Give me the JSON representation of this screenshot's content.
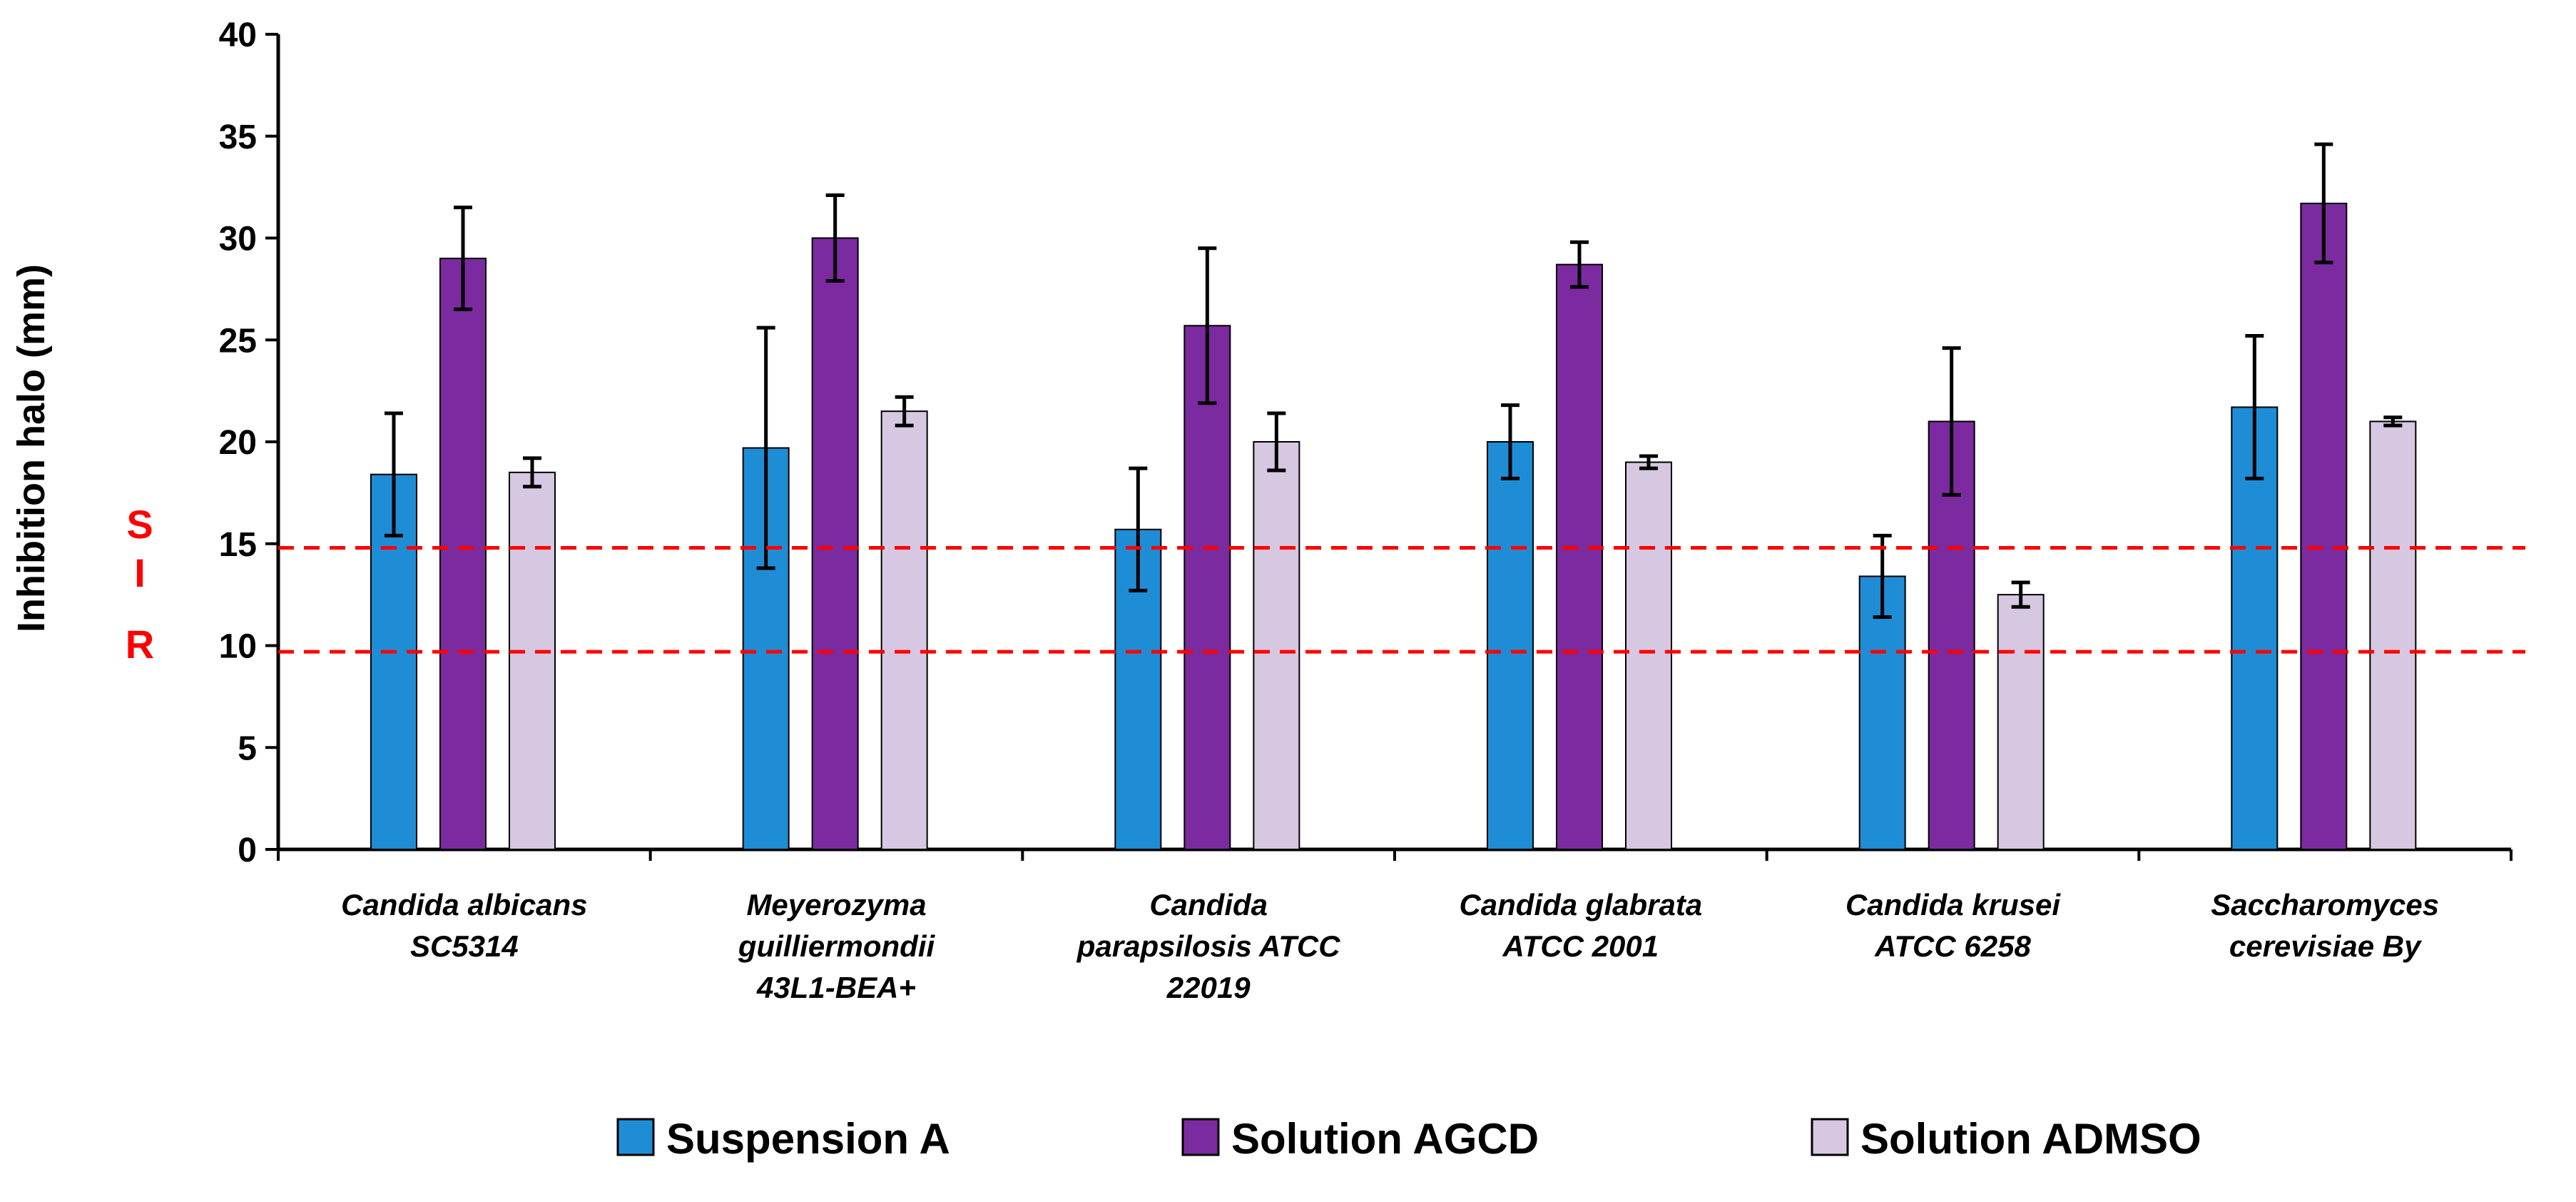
{
  "chart_data": {
    "type": "bar",
    "title": "",
    "xlabel": "",
    "ylabel": "Inhibition halo (mm)",
    "ylim": [
      0,
      40
    ],
    "ytick_step": 5,
    "grid": false,
    "legend_position": "bottom",
    "categories": [
      [
        "Candida albicans",
        "SC5314"
      ],
      [
        "Meyerozyma",
        "guilliermondii",
        "43L1-BEA+"
      ],
      [
        "Candida",
        "parapsilosis ATCC",
        "22019"
      ],
      [
        "Candida glabrata",
        "ATCC 2001"
      ],
      [
        "Candida krusei",
        "ATCC 6258"
      ],
      [
        "Saccharomyces",
        "cerevisiae By"
      ]
    ],
    "series": [
      {
        "name": "Suspension A",
        "color": "#1f8dd6",
        "values": [
          18.4,
          19.7,
          15.7,
          20.0,
          13.4,
          21.7
        ],
        "errors": [
          3.0,
          5.9,
          3.0,
          1.8,
          2.0,
          3.5
        ]
      },
      {
        "name": "Solution AGCD",
        "color": "#7b2aa0",
        "values": [
          29.0,
          30.0,
          25.7,
          28.7,
          21.0,
          31.7
        ],
        "errors": [
          2.5,
          2.1,
          3.8,
          1.1,
          3.6,
          2.9
        ]
      },
      {
        "name": "Solution ADMSO",
        "color": "#d6c8e0",
        "values": [
          18.5,
          21.5,
          20.0,
          19.0,
          12.5,
          21.0
        ],
        "errors": [
          0.7,
          0.7,
          1.4,
          0.3,
          0.6,
          0.2
        ]
      }
    ],
    "reference_lines": [
      {
        "value": 14.8,
        "color": "#ff0000",
        "style": "dashed"
      },
      {
        "value": 9.7,
        "color": "#ff0000",
        "style": "dashed"
      }
    ],
    "side_labels": [
      "S",
      "I",
      "R"
    ]
  }
}
